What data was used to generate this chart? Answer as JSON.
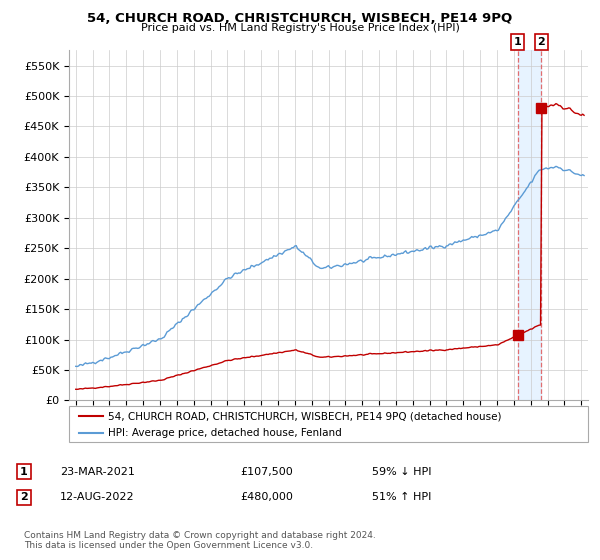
{
  "title": "54, CHURCH ROAD, CHRISTCHURCH, WISBECH, PE14 9PQ",
  "subtitle": "Price paid vs. HM Land Registry's House Price Index (HPI)",
  "legend_entry1": "54, CHURCH ROAD, CHRISTCHURCH, WISBECH, PE14 9PQ (detached house)",
  "legend_entry2": "HPI: Average price, detached house, Fenland",
  "transaction1_date": "23-MAR-2021",
  "transaction1_price": "£107,500",
  "transaction1_hpi": "59% ↓ HPI",
  "transaction2_date": "12-AUG-2022",
  "transaction2_price": "£480,000",
  "transaction2_hpi": "51% ↑ HPI",
  "footer": "Contains HM Land Registry data © Crown copyright and database right 2024.\nThis data is licensed under the Open Government Licence v3.0.",
  "hpi_color": "#5b9bd5",
  "price_color": "#c00000",
  "dashed_line_color": "#e06060",
  "shade_color": "#ddeeff",
  "ylim_min": 0,
  "ylim_max": 575000,
  "yticks": [
    0,
    50000,
    100000,
    150000,
    200000,
    250000,
    300000,
    350000,
    400000,
    450000,
    500000,
    550000
  ],
  "ytick_labels": [
    "£0",
    "£50K",
    "£100K",
    "£150K",
    "£200K",
    "£250K",
    "£300K",
    "£350K",
    "£400K",
    "£450K",
    "£500K",
    "£550K"
  ],
  "transaction1_x": 2021.22,
  "transaction1_y": 107500,
  "transaction2_x": 2022.62,
  "transaction2_y": 480000,
  "xlim_min": 1994.6,
  "xlim_max": 2025.4
}
